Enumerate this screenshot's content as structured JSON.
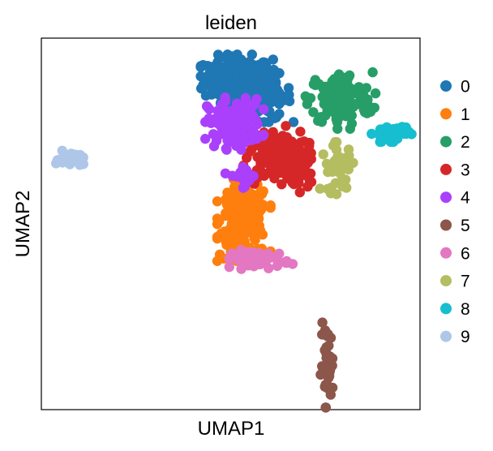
{
  "chart_data": {
    "type": "scatter",
    "title": "leiden",
    "xlabel": "UMAP1",
    "ylabel": "UMAP2",
    "xlim": [
      0,
      100
    ],
    "ylim": [
      0,
      100
    ],
    "grid": false,
    "legend_position": "right",
    "ticks": "none",
    "series": [
      {
        "name": "0",
        "color": "#1f77b4",
        "clusters": [
          {
            "cx": 52,
            "cy": 89,
            "sx": 4.5,
            "sy": 3.0,
            "n": 260
          },
          {
            "cx": 60,
            "cy": 84,
            "sx": 3.0,
            "sy": 3.0,
            "n": 60
          }
        ]
      },
      {
        "name": "1",
        "color": "#ff7f0e",
        "clusters": [
          {
            "cx": 53.5,
            "cy": 51,
            "sx": 3.2,
            "sy": 5.0,
            "n": 230
          }
        ]
      },
      {
        "name": "2",
        "color": "#279e68",
        "clusters": [
          {
            "cx": 79,
            "cy": 83.5,
            "sx": 4.2,
            "sy": 3.6,
            "n": 140
          }
        ]
      },
      {
        "name": "3",
        "color": "#d62728",
        "clusters": [
          {
            "cx": 62,
            "cy": 68,
            "sx": 4.0,
            "sy": 3.8,
            "n": 130
          },
          {
            "cx": 69,
            "cy": 64,
            "sx": 1.6,
            "sy": 2.5,
            "n": 20
          }
        ]
      },
      {
        "name": "4",
        "color": "#aa40fc",
        "clusters": [
          {
            "cx": 51,
            "cy": 77,
            "sx": 3.5,
            "sy": 3.2,
            "n": 140
          },
          {
            "cx": 53,
            "cy": 63,
            "sx": 2.0,
            "sy": 1.5,
            "n": 18
          }
        ]
      },
      {
        "name": "5",
        "color": "#8c564b",
        "clusters": [
          {
            "cx": 75.5,
            "cy": 12,
            "sx": 0.8,
            "sy": 5.2,
            "n": 42
          }
        ]
      },
      {
        "name": "6",
        "color": "#e377c2",
        "clusters": [
          {
            "cx": 58,
            "cy": 40.5,
            "sx": 3.8,
            "sy": 1.2,
            "n": 55
          }
        ]
      },
      {
        "name": "7",
        "color": "#b5bd61",
        "clusters": [
          {
            "cx": 78.5,
            "cy": 65,
            "sx": 2.3,
            "sy": 3.2,
            "n": 35
          }
        ]
      },
      {
        "name": "8",
        "color": "#17becf",
        "clusters": [
          {
            "cx": 92.5,
            "cy": 74.5,
            "sx": 2.4,
            "sy": 1.1,
            "n": 45
          }
        ]
      },
      {
        "name": "9",
        "color": "#aec7e8",
        "clusters": [
          {
            "cx": 7.5,
            "cy": 67.5,
            "sx": 1.8,
            "sy": 1.0,
            "n": 30
          }
        ]
      }
    ]
  }
}
